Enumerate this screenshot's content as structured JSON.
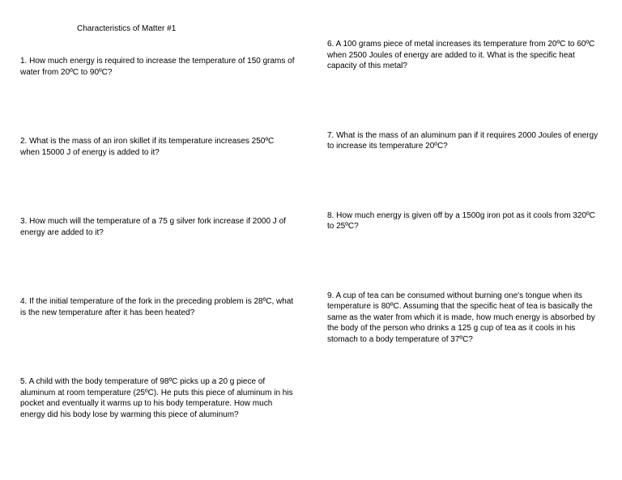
{
  "title": "Characteristics of Matter #1",
  "text_color": "#000000",
  "background_color": "#ffffff",
  "font_family": "Comic Sans MS",
  "font_size_pt": 10,
  "left": {
    "q1": "1.  How much energy is required to increase the temperature of 150 grams of water from 20ºC to 90ºC?",
    "q2": "2.  What is the mass of an iron skillet if its temperature increases 250ºC when 15000 J of energy is added to it?",
    "q3": "3. How much will the temperature of a 75 g silver fork increase if 2000 J of energy are added to it?",
    "q4": "4. If the initial temperature of the fork in the preceding problem is 28ºC, what is the new temperature after it has been heated?",
    "q5": "5. A child with the body temperature of 98ºC picks up a 20 g piece of aluminum at room temperature (25ºC). He puts this piece of aluminum in his pocket and eventually it warms up to his body temperature. How much energy did his body lose by warming this piece of aluminum?"
  },
  "right": {
    "q6": "6. A 100 grams piece of metal increases its temperature from 20ºC to 60ºC when 2500 Joules of energy are added to it.  What is the specific heat capacity of this metal?",
    "q7": "7. What is the mass of an aluminum pan if it requires 2000 Joules of energy to increase its temperature 20ºC?",
    "q8": "8.  How much energy is given off by a 1500g iron pot as it cools from 320ºC to 25ºC?",
    "q9": "9.  A cup of tea can be consumed without burning one's tongue when its temperature is 80ºC.  Assuming that the specific heat of tea is basically the same as the water from which it is made, how much energy is absorbed by the body of the person who drinks a 125 g cup of tea as it cools in his stomach to a body temperature of 37ºC?"
  }
}
